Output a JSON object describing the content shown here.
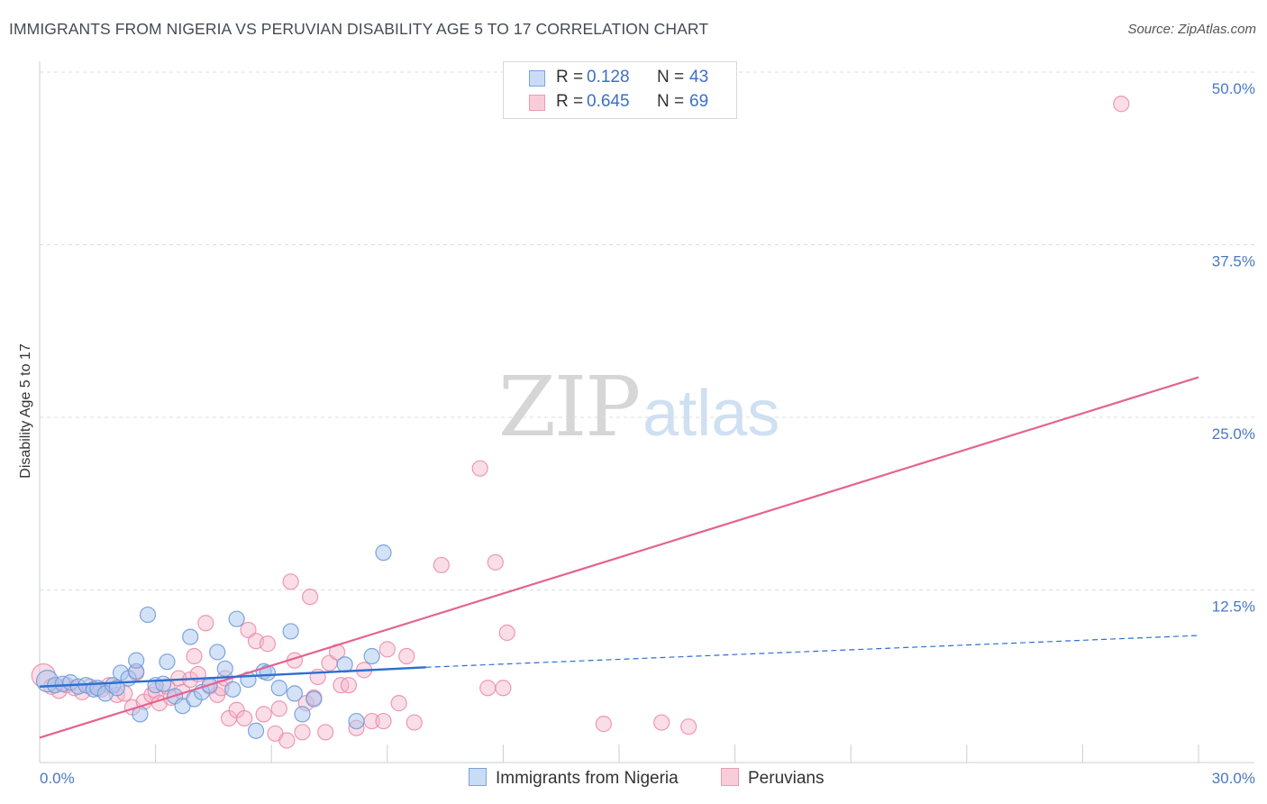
{
  "title": "IMMIGRANTS FROM NIGERIA VS PERUVIAN DISABILITY AGE 5 TO 17 CORRELATION CHART",
  "source": "Source: ZipAtlas.com",
  "watermark": {
    "zip": "ZIP",
    "atlas": "atlas"
  },
  "legend": {
    "rows": [
      {
        "r_label": "R =",
        "r_value": "0.128",
        "n_label": "N =",
        "n_value": "43",
        "color": "#a9c6ef"
      },
      {
        "r_label": "R =",
        "r_value": "0.645",
        "n_label": "N =",
        "n_value": "69",
        "color": "#f5b6ca"
      }
    ]
  },
  "bottom_legend": [
    {
      "label": "Immigrants from Nigeria",
      "color": "#a9c6ef"
    },
    {
      "label": "Peruvians",
      "color": "#f5b6ca"
    }
  ],
  "colors": {
    "blue_fill": "#a9c6ef",
    "blue_stroke": "#6f9bd8",
    "blue_line": "#2d6fd0",
    "pink_fill": "#f5b6ca",
    "pink_stroke": "#ea88a8",
    "pink_line": "#e4638f",
    "grid": "#d9dde3",
    "tick_text": "#4a78c4"
  },
  "chart_data": {
    "type": "scatter",
    "title": "IMMIGRANTS FROM NIGERIA VS PERUVIAN DISABILITY AGE 5 TO 17 CORRELATION CHART",
    "xlabel": "",
    "ylabel": "Disability Age 5 to 17",
    "xlim": [
      0,
      30
    ],
    "ylim": [
      0,
      50
    ],
    "x_tick_labels": [
      "0.0%",
      "30.0%"
    ],
    "y_ticks": [
      12.5,
      25.0,
      37.5,
      50.0
    ],
    "y_tick_labels": [
      "12.5%",
      "25.0%",
      "37.5%",
      "50.0%"
    ],
    "grid": "horizontal dashed",
    "legend_position": "top-center",
    "series": [
      {
        "name": "Immigrants from Nigeria",
        "r": 0.128,
        "n": 43,
        "trend": {
          "x": [
            0,
            10
          ],
          "y": [
            5.5,
            6.9
          ],
          "dashed_to": [
            30,
            9.2
          ]
        },
        "points": [
          [
            0.2,
            5.9
          ],
          [
            0.4,
            5.6
          ],
          [
            0.6,
            5.7
          ],
          [
            0.8,
            5.8
          ],
          [
            1.0,
            5.5
          ],
          [
            1.2,
            5.6
          ],
          [
            1.4,
            5.3
          ],
          [
            1.5,
            5.4
          ],
          [
            1.7,
            5.0
          ],
          [
            1.9,
            5.6
          ],
          [
            2.0,
            5.4
          ],
          [
            2.1,
            6.5
          ],
          [
            2.3,
            6.1
          ],
          [
            2.5,
            6.6
          ],
          [
            2.5,
            7.4
          ],
          [
            2.6,
            3.5
          ],
          [
            2.8,
            10.7
          ],
          [
            3.0,
            5.6
          ],
          [
            3.2,
            5.7
          ],
          [
            3.3,
            7.3
          ],
          [
            3.5,
            4.8
          ],
          [
            3.7,
            4.1
          ],
          [
            3.9,
            9.1
          ],
          [
            4.0,
            4.6
          ],
          [
            4.2,
            5.1
          ],
          [
            4.4,
            5.6
          ],
          [
            4.6,
            8.0
          ],
          [
            4.8,
            6.8
          ],
          [
            5.0,
            5.3
          ],
          [
            5.1,
            10.4
          ],
          [
            5.4,
            6.0
          ],
          [
            5.6,
            2.3
          ],
          [
            5.8,
            6.6
          ],
          [
            5.9,
            6.5
          ],
          [
            6.2,
            5.4
          ],
          [
            6.5,
            9.5
          ],
          [
            6.6,
            5.0
          ],
          [
            6.8,
            3.5
          ],
          [
            7.1,
            4.6
          ],
          [
            7.9,
            7.1
          ],
          [
            8.2,
            3.0
          ],
          [
            8.6,
            7.7
          ],
          [
            8.9,
            15.2
          ]
        ]
      },
      {
        "name": "Peruvians",
        "r": 0.645,
        "n": 69,
        "trend": {
          "x": [
            0,
            30
          ],
          "y": [
            1.8,
            27.9
          ]
        },
        "points": [
          [
            0.1,
            6.3
          ],
          [
            0.3,
            5.5
          ],
          [
            0.5,
            5.2
          ],
          [
            0.7,
            5.6
          ],
          [
            0.9,
            5.4
          ],
          [
            1.1,
            5.1
          ],
          [
            1.3,
            5.5
          ],
          [
            1.6,
            5.3
          ],
          [
            1.8,
            5.6
          ],
          [
            2.0,
            4.9
          ],
          [
            2.2,
            5.0
          ],
          [
            2.4,
            4.0
          ],
          [
            2.5,
            6.5
          ],
          [
            2.7,
            4.4
          ],
          [
            2.9,
            4.9
          ],
          [
            3.0,
            5.2
          ],
          [
            3.1,
            4.3
          ],
          [
            3.3,
            5.5
          ],
          [
            3.4,
            4.7
          ],
          [
            3.6,
            6.1
          ],
          [
            3.7,
            5.1
          ],
          [
            3.9,
            6.0
          ],
          [
            4.0,
            7.7
          ],
          [
            4.1,
            6.4
          ],
          [
            4.3,
            10.1
          ],
          [
            4.4,
            5.5
          ],
          [
            4.6,
            4.9
          ],
          [
            4.7,
            5.4
          ],
          [
            4.8,
            6.1
          ],
          [
            4.9,
            3.2
          ],
          [
            5.1,
            3.8
          ],
          [
            5.3,
            3.2
          ],
          [
            5.4,
            9.6
          ],
          [
            5.6,
            8.8
          ],
          [
            5.8,
            3.5
          ],
          [
            5.9,
            8.6
          ],
          [
            6.1,
            2.1
          ],
          [
            6.2,
            3.9
          ],
          [
            6.4,
            1.6
          ],
          [
            6.5,
            13.1
          ],
          [
            6.6,
            7.4
          ],
          [
            6.8,
            2.2
          ],
          [
            6.9,
            4.3
          ],
          [
            7.0,
            12.0
          ],
          [
            7.1,
            4.7
          ],
          [
            7.2,
            6.2
          ],
          [
            7.4,
            2.2
          ],
          [
            7.5,
            7.2
          ],
          [
            7.7,
            8.0
          ],
          [
            7.8,
            5.6
          ],
          [
            8.0,
            5.6
          ],
          [
            8.2,
            2.5
          ],
          [
            8.4,
            6.7
          ],
          [
            8.6,
            3.0
          ],
          [
            8.9,
            3.0
          ],
          [
            9.0,
            8.2
          ],
          [
            9.3,
            4.3
          ],
          [
            9.5,
            7.7
          ],
          [
            9.7,
            2.9
          ],
          [
            10.4,
            14.3
          ],
          [
            11.4,
            21.3
          ],
          [
            11.6,
            5.4
          ],
          [
            11.8,
            14.5
          ],
          [
            12.0,
            5.4
          ],
          [
            12.1,
            9.4
          ],
          [
            14.6,
            2.8
          ],
          [
            16.1,
            2.9
          ],
          [
            16.8,
            2.6
          ],
          [
            28.0,
            47.7
          ]
        ]
      }
    ]
  }
}
